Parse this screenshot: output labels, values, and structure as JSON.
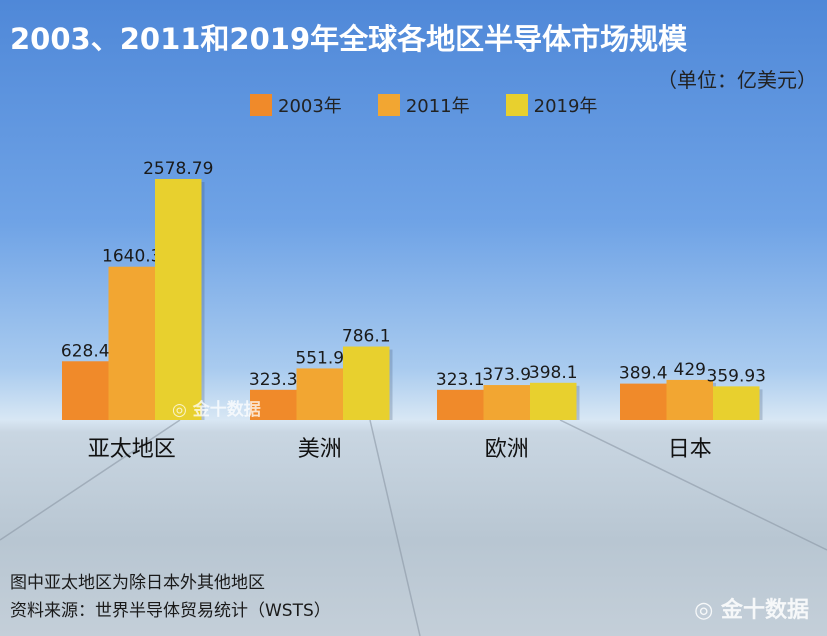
{
  "chart_data": {
    "type": "bar",
    "title": "2003、2011和2019年全球各地区半导体市场规模",
    "unit": "（单位：亿美元）",
    "categories": [
      "亚太地区",
      "美洲",
      "欧洲",
      "日本"
    ],
    "series": [
      {
        "name": "2003年",
        "color": "#f08a2a",
        "values": [
          628.4,
          323.3,
          323.1,
          389.4
        ],
        "labels": [
          "628.4",
          "323.3",
          "323.1",
          "389.4"
        ]
      },
      {
        "name": "2011年",
        "color": "#f2a632",
        "values": [
          1640.3,
          551.9,
          373.9,
          429
        ],
        "labels": [
          "1640.3",
          "551.9",
          "373.9",
          "429"
        ]
      },
      {
        "name": "2019年",
        "color": "#e8d02e",
        "values": [
          2578.79,
          786.1,
          398.1,
          359.93
        ],
        "labels": [
          "2578.79",
          "786.1",
          "398.1",
          "359.93"
        ]
      }
    ],
    "legend_position": "top",
    "grid": false
  },
  "notes": [
    "图中亚太地区为除日本外其他地区",
    "资料来源：世界半导体贸易统计（WSTS）"
  ],
  "watermark": "金十数据"
}
